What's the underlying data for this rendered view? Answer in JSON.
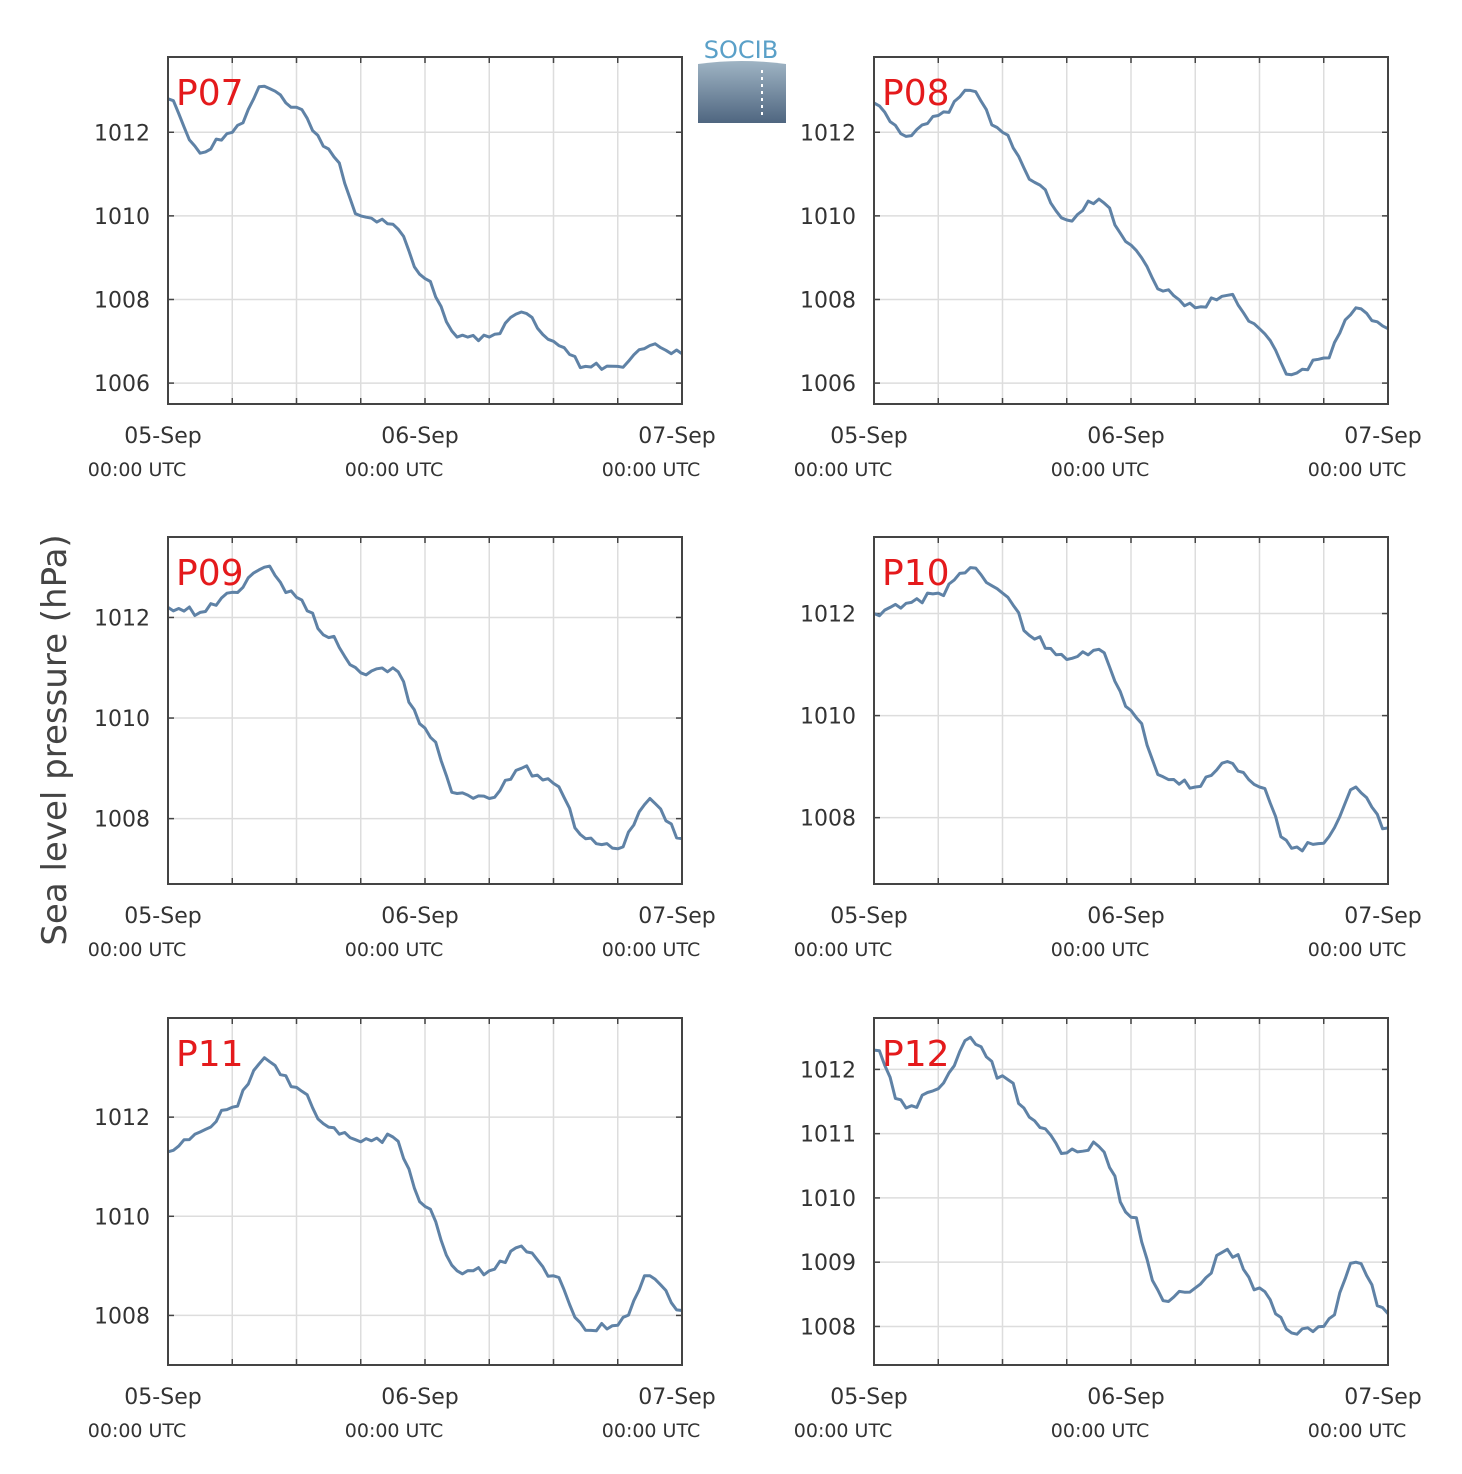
{
  "logo": {
    "text": "SOCIB"
  },
  "colors": {
    "line": "#5f82a6",
    "panel_label": "#e41a1c",
    "grid": "#dddddd",
    "frame": "#444444"
  },
  "ylabel": "Sea level pressure (hPa)",
  "x_ticks": [
    {
      "date": "05-Sep",
      "time": "00:00 UTC"
    },
    {
      "date": "06-Sep",
      "time": "00:00 UTC"
    },
    {
      "date": "07-Sep",
      "time": "00:00 UTC"
    }
  ],
  "chart_data": [
    {
      "type": "line",
      "label": "P07",
      "xlim": [
        "2024-09-05 00:00",
        "2024-09-07 00:00"
      ],
      "ylim": [
        1005.5,
        1013.8
      ],
      "yticks": [
        1006,
        1008,
        1010,
        1012
      ],
      "x": [
        "05-Sep 00:00",
        "05-Sep 03:00",
        "05-Sep 06:00",
        "05-Sep 09:00",
        "05-Sep 12:00",
        "05-Sep 15:00",
        "05-Sep 18:00",
        "05-Sep 21:00",
        "06-Sep 00:00",
        "06-Sep 03:00",
        "06-Sep 06:00",
        "06-Sep 09:00",
        "06-Sep 12:00",
        "06-Sep 15:00",
        "06-Sep 18:00",
        "06-Sep 21:00",
        "07-Sep 00:00"
      ],
      "values": [
        1012.8,
        1011.5,
        1012.0,
        1013.1,
        1012.6,
        1011.6,
        1010.0,
        1009.8,
        1008.5,
        1007.1,
        1007.1,
        1007.7,
        1007.0,
        1006.4,
        1006.4,
        1006.9,
        1006.7
      ]
    },
    {
      "type": "line",
      "label": "P08",
      "xlim": [
        "2024-09-05 00:00",
        "2024-09-07 00:00"
      ],
      "ylim": [
        1005.5,
        1013.8
      ],
      "yticks": [
        1006,
        1008,
        1010,
        1012
      ],
      "x": [
        "05-Sep 00:00",
        "05-Sep 03:00",
        "05-Sep 06:00",
        "05-Sep 09:00",
        "05-Sep 12:00",
        "05-Sep 15:00",
        "05-Sep 18:00",
        "05-Sep 21:00",
        "06-Sep 00:00",
        "06-Sep 03:00",
        "06-Sep 06:00",
        "06-Sep 09:00",
        "06-Sep 12:00",
        "06-Sep 15:00",
        "06-Sep 18:00",
        "06-Sep 21:00",
        "07-Sep 00:00"
      ],
      "values": [
        1012.7,
        1011.9,
        1012.4,
        1013.0,
        1012.0,
        1010.8,
        1009.9,
        1010.4,
        1009.3,
        1008.2,
        1007.8,
        1008.1,
        1007.3,
        1006.2,
        1006.6,
        1007.8,
        1007.3
      ]
    },
    {
      "type": "line",
      "label": "P09",
      "xlim": [
        "2024-09-05 00:00",
        "2024-09-07 00:00"
      ],
      "ylim": [
        1006.7,
        1013.6
      ],
      "yticks": [
        1008,
        1010,
        1012
      ],
      "x": [
        "05-Sep 00:00",
        "05-Sep 03:00",
        "05-Sep 06:00",
        "05-Sep 09:00",
        "05-Sep 12:00",
        "05-Sep 15:00",
        "05-Sep 18:00",
        "05-Sep 21:00",
        "06-Sep 00:00",
        "06-Sep 03:00",
        "06-Sep 06:00",
        "06-Sep 09:00",
        "06-Sep 12:00",
        "06-Sep 15:00",
        "06-Sep 18:00",
        "06-Sep 21:00",
        "07-Sep 00:00"
      ],
      "values": [
        1012.2,
        1012.1,
        1012.5,
        1013.0,
        1012.4,
        1011.6,
        1010.9,
        1011.0,
        1009.8,
        1008.5,
        1008.4,
        1009.0,
        1008.7,
        1007.6,
        1007.4,
        1008.4,
        1007.6
      ]
    },
    {
      "type": "line",
      "label": "P10",
      "xlim": [
        "2024-09-05 00:00",
        "2024-09-07 00:00"
      ],
      "ylim": [
        1006.7,
        1013.5
      ],
      "yticks": [
        1008,
        1010,
        1012
      ],
      "x": [
        "05-Sep 00:00",
        "05-Sep 03:00",
        "05-Sep 06:00",
        "05-Sep 09:00",
        "05-Sep 12:00",
        "05-Sep 15:00",
        "05-Sep 18:00",
        "05-Sep 21:00",
        "06-Sep 00:00",
        "06-Sep 03:00",
        "06-Sep 06:00",
        "06-Sep 09:00",
        "06-Sep 12:00",
        "06-Sep 15:00",
        "06-Sep 18:00",
        "06-Sep 21:00",
        "07-Sep 00:00"
      ],
      "values": [
        1012.0,
        1012.2,
        1012.4,
        1012.9,
        1012.4,
        1011.5,
        1011.1,
        1011.3,
        1010.1,
        1008.8,
        1008.6,
        1009.1,
        1008.6,
        1007.4,
        1007.5,
        1008.6,
        1007.8
      ]
    },
    {
      "type": "line",
      "label": "P11",
      "xlim": [
        "2024-09-05 00:00",
        "2024-09-07 00:00"
      ],
      "ylim": [
        1007.0,
        1014.0
      ],
      "yticks": [
        1008,
        1010,
        1012
      ],
      "x": [
        "05-Sep 00:00",
        "05-Sep 03:00",
        "05-Sep 06:00",
        "05-Sep 09:00",
        "05-Sep 12:00",
        "05-Sep 15:00",
        "05-Sep 18:00",
        "05-Sep 21:00",
        "06-Sep 00:00",
        "06-Sep 03:00",
        "06-Sep 06:00",
        "06-Sep 09:00",
        "06-Sep 12:00",
        "06-Sep 15:00",
        "06-Sep 18:00",
        "06-Sep 21:00",
        "07-Sep 00:00"
      ],
      "values": [
        1011.3,
        1011.7,
        1012.2,
        1013.2,
        1012.6,
        1011.8,
        1011.5,
        1011.6,
        1010.2,
        1008.9,
        1008.9,
        1009.4,
        1008.8,
        1007.7,
        1007.8,
        1008.8,
        1008.1
      ]
    },
    {
      "type": "line",
      "label": "P12",
      "xlim": [
        "2024-09-05 00:00",
        "2024-09-07 00:00"
      ],
      "ylim": [
        1007.4,
        1012.8
      ],
      "yticks": [
        1008,
        1009,
        1010,
        1011,
        1012
      ],
      "x": [
        "05-Sep 00:00",
        "05-Sep 03:00",
        "05-Sep 06:00",
        "05-Sep 09:00",
        "05-Sep 12:00",
        "05-Sep 15:00",
        "05-Sep 18:00",
        "05-Sep 21:00",
        "06-Sep 00:00",
        "06-Sep 03:00",
        "06-Sep 06:00",
        "06-Sep 09:00",
        "06-Sep 12:00",
        "06-Sep 15:00",
        "06-Sep 18:00",
        "06-Sep 21:00",
        "07-Sep 00:00"
      ],
      "values": [
        1012.3,
        1011.4,
        1011.7,
        1012.5,
        1011.9,
        1011.2,
        1010.7,
        1010.8,
        1009.7,
        1008.4,
        1008.6,
        1009.2,
        1008.6,
        1007.9,
        1008.0,
        1009.0,
        1008.2
      ]
    }
  ]
}
